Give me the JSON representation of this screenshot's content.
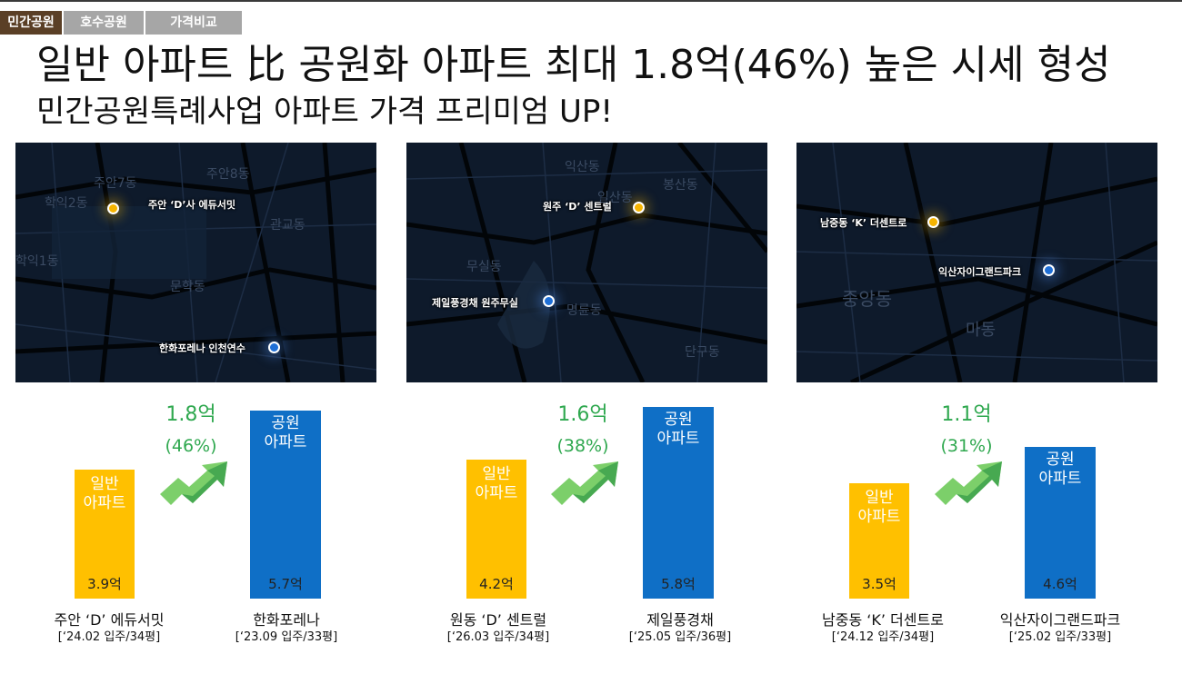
{
  "tabs": [
    {
      "label": "민간공원",
      "active": true
    },
    {
      "label": "호수공원",
      "active": false
    },
    {
      "label": "가격비교",
      "active": false
    }
  ],
  "headline": "일반 아파트 比 공원화 아파트 최대 1.8억(46%) 높은 시세 형성",
  "subline": "민간공원특례사업 아파트 가격 프리미엄 UP!",
  "colors": {
    "general": "#ffc000",
    "park": "#0f6fc6",
    "diff": "#2fa84f",
    "map_bg": "#0e1a2b"
  },
  "maps": [
    {
      "labels": [
        "주안 ‘D’사 에듀서밋",
        "한화포레나 인천연수"
      ],
      "districts": [
        "주안8동",
        "주안7동",
        "학익2동",
        "학익1동",
        "문학동",
        "관교동"
      ]
    },
    {
      "labels": [
        "원주 ‘D’ 센트럴",
        "제일풍경채 원주무실"
      ],
      "districts": [
        "익산동",
        "봉산동",
        "일산동",
        "무실동",
        "명륜동",
        "단구동"
      ]
    },
    {
      "labels": [
        "남중동 ‘K’ 더센트로",
        "익산자이그랜드파크"
      ],
      "districts": [
        "중앙동",
        "마동"
      ]
    }
  ],
  "chart_data": [
    {
      "type": "bar",
      "categories": [
        "일반 아파트",
        "공원 아파트"
      ],
      "values": [
        3.9,
        5.7
      ],
      "value_labels": [
        "3.9억",
        "5.7억"
      ],
      "bar_labels": [
        "일반\n아파트",
        "공원\n아파트"
      ],
      "names": [
        "주안 ‘D’ 에듀서밋",
        "한화포레나"
      ],
      "details": [
        "[‘24.02 입주/34평]",
        "[‘23.09 입주/33평]"
      ],
      "diff_amount": "1.8억",
      "diff_percent": "(46%)"
    },
    {
      "type": "bar",
      "categories": [
        "일반 아파트",
        "공원 아파트"
      ],
      "values": [
        4.2,
        5.8
      ],
      "value_labels": [
        "4.2억",
        "5.8억"
      ],
      "bar_labels": [
        "일반\n아파트",
        "공원\n아파트"
      ],
      "names": [
        "원동 ‘D’ 센트럴",
        "제일풍경채"
      ],
      "details": [
        "[‘26.03 입주/34평]",
        "[‘25.05 입주/36평]"
      ],
      "diff_amount": "1.6억",
      "diff_percent": "(38%)"
    },
    {
      "type": "bar",
      "categories": [
        "일반 아파트",
        "공원 아파트"
      ],
      "values": [
        3.5,
        4.6
      ],
      "value_labels": [
        "3.5억",
        "4.6억"
      ],
      "bar_labels": [
        "일반\n아파트",
        "공원\n아파트"
      ],
      "names": [
        "남중동 ‘K’ 더센트로",
        "익산자이그랜드파크"
      ],
      "details": [
        "[‘24.12 입주/34평]",
        "[‘25.02 입주/33평]"
      ],
      "diff_amount": "1.1억",
      "diff_percent": "(31%)"
    }
  ]
}
